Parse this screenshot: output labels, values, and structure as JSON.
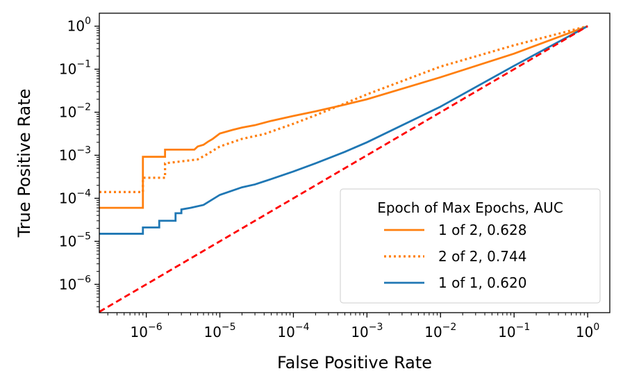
{
  "chart_data": {
    "type": "line",
    "xlabel": "False Positive Rate",
    "ylabel": "True Positive Rate",
    "xscale": "log",
    "yscale": "log",
    "xlim": [
      2.3e-07,
      2.0
    ],
    "ylim": [
      2.2e-07,
      2.0
    ],
    "x_ticks": [
      {
        "base": "10",
        "exp": "−6",
        "value": 1e-06
      },
      {
        "base": "10",
        "exp": "−5",
        "value": 1e-05
      },
      {
        "base": "10",
        "exp": "−4",
        "value": 0.0001
      },
      {
        "base": "10",
        "exp": "−3",
        "value": 0.001
      },
      {
        "base": "10",
        "exp": "−2",
        "value": 0.01
      },
      {
        "base": "10",
        "exp": "−1",
        "value": 0.1
      },
      {
        "base": "10",
        "exp": "0",
        "value": 1
      }
    ],
    "y_ticks": [
      {
        "base": "10",
        "exp": "−6",
        "value": 1e-06
      },
      {
        "base": "10",
        "exp": "−5",
        "value": 1e-05
      },
      {
        "base": "10",
        "exp": "−4",
        "value": 0.0001
      },
      {
        "base": "10",
        "exp": "−3",
        "value": 0.001
      },
      {
        "base": "10",
        "exp": "−2",
        "value": 0.01
      },
      {
        "base": "10",
        "exp": "−1",
        "value": 0.1
      },
      {
        "base": "10",
        "exp": "0",
        "value": 1
      }
    ],
    "grid": false,
    "legend": {
      "title": "Epoch of Max Epochs, AUC",
      "placement": "lower-right"
    },
    "series": [
      {
        "name": "1 of 2, 0.628",
        "color": "#ff7f0e",
        "style": "solid",
        "points": [
          [
            2.3e-07,
            6e-05
          ],
          [
            9e-07,
            6e-05
          ],
          [
            9e-07,
            0.00092
          ],
          [
            1.8e-06,
            0.00092
          ],
          [
            1.8e-06,
            0.00135
          ],
          [
            4.5e-06,
            0.00135
          ],
          [
            5e-06,
            0.0016
          ],
          [
            6e-06,
            0.00175
          ],
          [
            7e-06,
            0.0021
          ],
          [
            8e-06,
            0.0024
          ],
          [
            1e-05,
            0.0032
          ],
          [
            1.5e-05,
            0.0039
          ],
          [
            2e-05,
            0.0044
          ],
          [
            3e-05,
            0.005
          ],
          [
            5e-05,
            0.0063
          ],
          [
            0.0001,
            0.0082
          ],
          [
            0.0002,
            0.0105
          ],
          [
            0.0005,
            0.015
          ],
          [
            0.001,
            0.02
          ],
          [
            0.01,
            0.065
          ],
          [
            0.1,
            0.23
          ],
          [
            1,
            1
          ]
        ]
      },
      {
        "name": "2 of 2, 0.744",
        "color": "#ff7f0e",
        "style": "dotted",
        "points": [
          [
            2.3e-07,
            0.00014
          ],
          [
            9e-07,
            0.00014
          ],
          [
            9e-07,
            0.0003
          ],
          [
            1.8e-06,
            0.0003
          ],
          [
            1.8e-06,
            0.00065
          ],
          [
            5e-06,
            0.0008
          ],
          [
            7e-06,
            0.0011
          ],
          [
            1e-05,
            0.0016
          ],
          [
            2e-05,
            0.0024
          ],
          [
            4e-05,
            0.0031
          ],
          [
            0.0001,
            0.0054
          ],
          [
            0.0002,
            0.0085
          ],
          [
            0.0005,
            0.016
          ],
          [
            0.001,
            0.026
          ],
          [
            0.01,
            0.115
          ],
          [
            0.1,
            0.36
          ],
          [
            1,
            1
          ]
        ]
      },
      {
        "name": "1 of 1, 0.620",
        "color": "#1f77b4",
        "style": "solid",
        "points": [
          [
            2.3e-07,
            1.5e-05
          ],
          [
            9e-07,
            1.5e-05
          ],
          [
            9e-07,
            2.1e-05
          ],
          [
            1.5e-06,
            2.1e-05
          ],
          [
            1.5e-06,
            3e-05
          ],
          [
            2.5e-06,
            3e-05
          ],
          [
            2.5e-06,
            4.5e-05
          ],
          [
            3e-06,
            4.5e-05
          ],
          [
            3e-06,
            5.5e-05
          ],
          [
            4e-06,
            6e-05
          ],
          [
            6e-06,
            7e-05
          ],
          [
            1e-05,
            0.00012
          ],
          [
            2e-05,
            0.00018
          ],
          [
            3e-05,
            0.00021
          ],
          [
            5e-05,
            0.00028
          ],
          [
            0.0001,
            0.00042
          ],
          [
            0.0002,
            0.00065
          ],
          [
            0.0005,
            0.0012
          ],
          [
            0.001,
            0.002
          ],
          [
            0.01,
            0.0135
          ],
          [
            0.1,
            0.12
          ],
          [
            1,
            1
          ]
        ]
      },
      {
        "name": "",
        "color": "#ff0000",
        "style": "dashed",
        "legend": false,
        "points": [
          [
            2.3e-07,
            2.3e-07
          ],
          [
            1,
            1
          ]
        ]
      }
    ]
  }
}
